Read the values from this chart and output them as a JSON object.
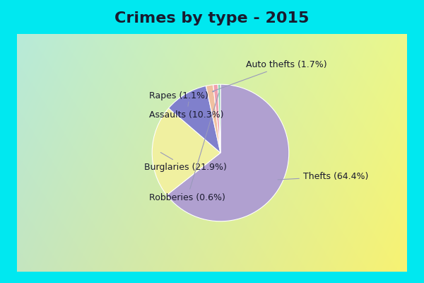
{
  "title": "Crimes by type - 2015",
  "labels": [
    "Thefts",
    "Burglaries",
    "Assaults",
    "Auto thefts",
    "Rapes",
    "Robberies"
  ],
  "percentages": [
    64.4,
    21.9,
    10.3,
    1.7,
    1.1,
    0.6
  ],
  "colors": [
    "#b0a0d0",
    "#f0f0a0",
    "#8080cc",
    "#f0c0a0",
    "#f0a0b0",
    "#90d0b0"
  ],
  "label_texts": [
    "Thefts (64.4%)",
    "Burglaries (21.9%)",
    "Assaults (10.3%)",
    "Auto thefts (1.7%)",
    "Rapes (1.1%)",
    "Robberies (0.6%)"
  ],
  "cyan_border": "#00e8f0",
  "title_color": "#1a1a2e",
  "title_fontsize": 16,
  "label_fontsize": 9,
  "label_color": "#1a1a2e"
}
